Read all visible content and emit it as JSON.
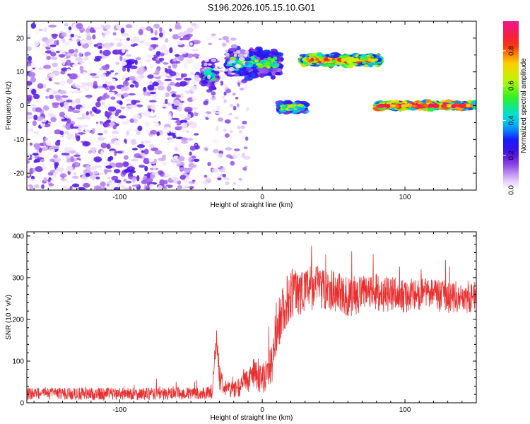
{
  "chart_data": [
    {
      "type": "heatmap",
      "title": "S196.2026.105.15.10.G01",
      "xlabel": "Height of straight line (km)",
      "ylabel": "Frequency (Hz)",
      "xlim": [
        -165,
        150
      ],
      "ylim": [
        -25,
        25
      ],
      "x_ticks": [
        -100,
        0,
        100
      ],
      "y_ticks": [
        -20,
        -10,
        0,
        10,
        20
      ],
      "colorbar": {
        "label": "Normalized spectral amplitude",
        "range": [
          0,
          0.97
        ],
        "ticks": [
          0.0,
          0.2,
          0.4,
          0.6,
          0.8
        ],
        "tick_labels": [
          "0.0",
          "0.2",
          "0.4",
          "0.6",
          "0.8"
        ],
        "colormap": "rainbow"
      },
      "regions": [
        {
          "x": [
            -165,
            -45
          ],
          "y": [
            -25,
            24
          ],
          "level": 0.1,
          "note": "diffuse noise"
        },
        {
          "x": [
            -42,
            -32
          ],
          "y": [
            5,
            13
          ],
          "level": 0.2
        },
        {
          "x": [
            -25,
            12
          ],
          "y": [
            8,
            17
          ],
          "level": 0.25
        },
        {
          "x": [
            12,
            30
          ],
          "y": [
            -2,
            1
          ],
          "level": 0.35
        },
        {
          "x": [
            28,
            82
          ],
          "y": [
            12,
            15
          ],
          "level": 0.55
        },
        {
          "x": [
            80,
            150
          ],
          "y": [
            -1,
            1
          ],
          "level": 0.65
        }
      ]
    },
    {
      "type": "line",
      "xlabel": "Height of straight line (km)",
      "ylabel": "SNR (10 * v/v)",
      "xlim": [
        -165,
        150
      ],
      "ylim": [
        0,
        410
      ],
      "x_ticks": [
        -100,
        0,
        100
      ],
      "y_ticks": [
        0,
        100,
        200,
        300,
        400
      ],
      "line_color": "#e83030",
      "series": [
        {
          "x": [
            -165,
            -140,
            -120,
            -100,
            -80,
            -60,
            -40,
            -35,
            -32,
            -30,
            -25,
            -20,
            -15,
            -10,
            -5,
            0,
            5,
            8,
            10,
            15,
            18,
            22,
            30,
            40,
            50,
            60,
            70,
            80,
            90,
            100,
            110,
            120,
            130,
            140,
            150
          ],
          "y": [
            22,
            22,
            21,
            22,
            21,
            22,
            23,
            25,
            160,
            60,
            35,
            32,
            40,
            55,
            70,
            60,
            75,
            110,
            170,
            230,
            250,
            265,
            272,
            280,
            270,
            255,
            260,
            265,
            258,
            255,
            262,
            258,
            255,
            255,
            252
          ],
          "noise": [
            15,
            15,
            15,
            15,
            15,
            15,
            15,
            15,
            30,
            30,
            20,
            20,
            25,
            30,
            40,
            40,
            45,
            50,
            60,
            60,
            65,
            60,
            55,
            55,
            50,
            50,
            45,
            45,
            45,
            40,
            40,
            40,
            40,
            40,
            40
          ]
        }
      ]
    }
  ]
}
